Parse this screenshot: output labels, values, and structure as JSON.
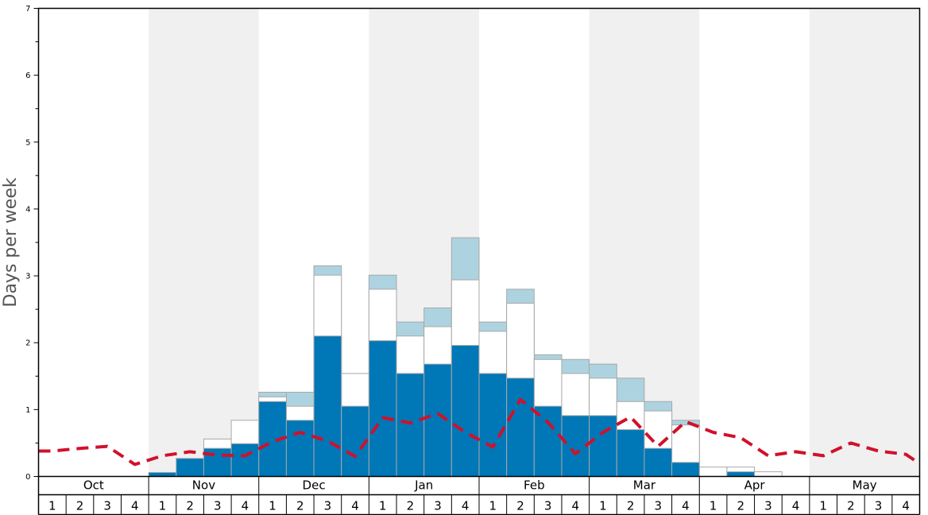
{
  "chart_data": {
    "type": "bar",
    "ylabel": "Days per week",
    "ylim": [
      0,
      7
    ],
    "y_ticks": [
      0,
      1,
      2,
      3,
      4,
      5,
      6,
      7
    ],
    "months": [
      "Oct",
      "Nov",
      "Dec",
      "Jan",
      "Feb",
      "Mar",
      "Apr",
      "May"
    ],
    "week_labels": [
      "1",
      "2",
      "3",
      "4"
    ],
    "colors": {
      "dark": "#0077b6",
      "white": "#ffffff",
      "light": "#add3e0",
      "line": "#d0112b",
      "band": "#f0f0f0"
    },
    "series": [
      {
        "values": [
          0,
          0,
          0,
          0,
          0.06,
          0.27,
          0.42,
          0.49,
          1.12,
          0.84,
          2.1,
          1.05,
          2.03,
          1.54,
          1.68,
          1.96,
          1.54,
          1.47,
          1.05,
          0.91,
          0.91,
          0.7,
          0.42,
          0.21,
          0,
          0.07,
          0,
          0,
          0,
          0,
          0,
          0
        ]
      },
      {
        "values": [
          0,
          0,
          0,
          0,
          0,
          0,
          0.56,
          0.84,
          1.19,
          1.05,
          3.01,
          1.54,
          2.8,
          2.1,
          2.24,
          2.94,
          2.17,
          2.59,
          1.75,
          1.54,
          1.47,
          1.12,
          0.98,
          0.77,
          0.14,
          0.14,
          0.07,
          0,
          0,
          0,
          0,
          0
        ]
      },
      {
        "values": [
          0,
          0,
          0,
          0,
          0,
          0,
          0,
          0,
          1.26,
          1.26,
          3.15,
          0,
          3.01,
          2.31,
          2.52,
          3.57,
          2.31,
          2.8,
          1.82,
          1.75,
          1.68,
          1.47,
          1.12,
          0.84,
          0,
          0,
          0,
          0,
          0,
          0,
          0,
          0
        ]
      },
      {
        "values": [
          0.38,
          0.42,
          0.45,
          0.18,
          0.31,
          0.37,
          0.32,
          0.31,
          0.52,
          0.66,
          0.53,
          0.3,
          0.88,
          0.8,
          0.94,
          0.66,
          0.44,
          1.15,
          0.81,
          0.34,
          0.66,
          0.89,
          0.45,
          0.82,
          0.66,
          0.58,
          0.31,
          0.37,
          0.31,
          0.5,
          0.38,
          0.33
        ]
      }
    ]
  }
}
